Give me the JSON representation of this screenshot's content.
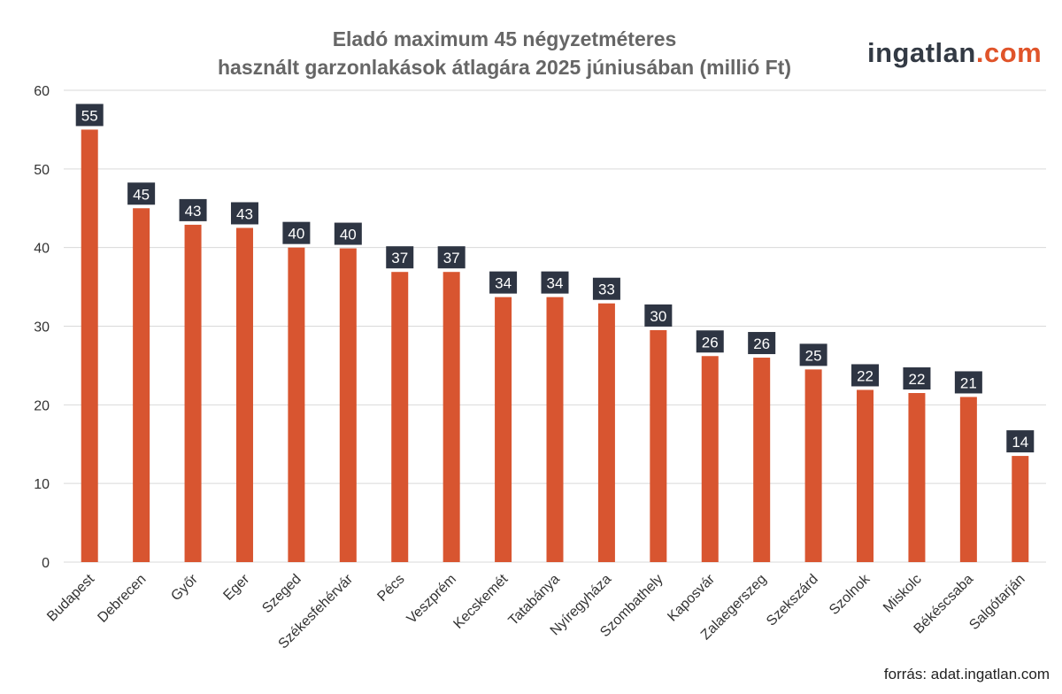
{
  "chart_data": {
    "type": "bar",
    "title": "Eladó maximum 45 négyzetméteres",
    "subtitle": "használt garzonlakások átlagára 2025 júniusában (millió Ft)",
    "categories": [
      "Budapest",
      "Debrecen",
      "Győr",
      "Eger",
      "Szeged",
      "Székesfehérvár",
      "Pécs",
      "Veszprém",
      "Kecskemét",
      "Tatabánya",
      "Nyíregyháza",
      "Szombathely",
      "Kaposvár",
      "Zalaegerszeg",
      "Szekszárd",
      "Szolnok",
      "Miskolc",
      "Békéscsaba",
      "Salgótarján"
    ],
    "values": [
      55,
      45,
      42.9,
      42.5,
      40,
      39.9,
      36.9,
      36.9,
      33.7,
      33.7,
      32.9,
      29.5,
      26.2,
      26,
      24.5,
      21.9,
      21.5,
      21,
      13.5
    ],
    "data_labels": [
      "55",
      "45",
      "43",
      "43",
      "40",
      "40",
      "37",
      "37",
      "34",
      "34",
      "33",
      "30",
      "26",
      "26",
      "25",
      "22",
      "22",
      "21",
      "14"
    ],
    "yticks": [
      0,
      10,
      20,
      30,
      40,
      50,
      60
    ],
    "ylim": [
      0,
      60
    ],
    "grid": true,
    "legend": "none",
    "colors": {
      "bar": "#d85530",
      "label_bg": "#2e3543",
      "label_text": "#ffffff",
      "grid": "#d9d9d9",
      "title": "#666666"
    }
  },
  "logo": {
    "part1": "ingatlan",
    "part2": ".com"
  },
  "source": "forrás: adat.ingatlan.com"
}
